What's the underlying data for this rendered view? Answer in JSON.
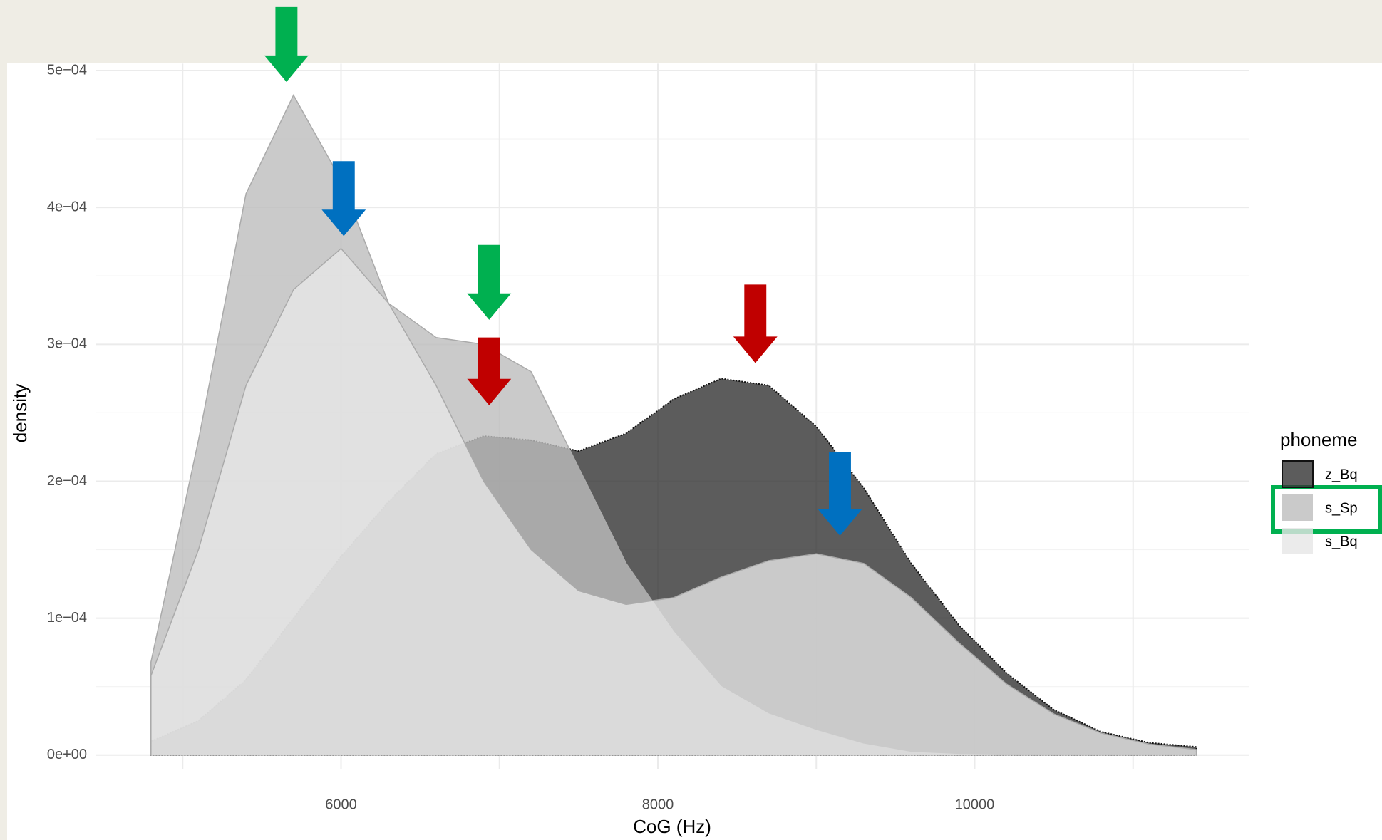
{
  "chart_data": {
    "type": "density",
    "xlabel": "CoG (Hz)",
    "ylabel": "density",
    "legend_title": "phoneme",
    "legend": "right",
    "grid": true,
    "xlim": [
      4450,
      11730
    ],
    "xticks": [
      6000,
      8000,
      10000
    ],
    "xminor": [
      5000,
      7000,
      9000,
      11000
    ],
    "ylim": [
      -1e-05,
      0.000505
    ],
    "yticks": [
      {
        "value": 0,
        "label": "0e+00"
      },
      {
        "value": 0.0001,
        "label": "1e−04"
      },
      {
        "value": 0.0002,
        "label": "2e−04"
      },
      {
        "value": 0.0003,
        "label": "3e−04"
      },
      {
        "value": 0.0004,
        "label": "4e−04"
      },
      {
        "value": 0.0005,
        "label": "5e−04"
      }
    ],
    "yminor": [
      5e-05,
      0.00015,
      0.00025,
      0.00035,
      0.00045
    ],
    "x": [
      4800,
      5100,
      5400,
      5700,
      6000,
      6300,
      6600,
      6900,
      7200,
      7500,
      7800,
      8100,
      8400,
      8700,
      9000,
      9300,
      9600,
      9900,
      10200,
      10500,
      10800,
      11100,
      11400
    ],
    "series": [
      {
        "name": "z_Bq",
        "color": "#333333",
        "values": [
          1e-05,
          2.5e-05,
          5.5e-05,
          0.0001,
          0.000145,
          0.000185,
          0.00022,
          0.000233,
          0.00023,
          0.000222,
          0.000235,
          0.00026,
          0.000275,
          0.00027,
          0.00024,
          0.000195,
          0.00014,
          9.5e-05,
          6e-05,
          3.3e-05,
          1.7e-05,
          9e-06,
          6e-06
        ]
      },
      {
        "name": "s_Sp",
        "color": "#bdbdbd",
        "values": [
          6.8e-05,
          0.00023,
          0.00041,
          0.000482,
          0.00042,
          0.00033,
          0.000305,
          0.0003,
          0.00028,
          0.00021,
          0.00014,
          9e-05,
          5e-05,
          3e-05,
          1.8e-05,
          8e-06,
          2e-06,
          5e-07,
          0,
          0,
          0,
          0,
          0
        ]
      },
      {
        "name": "s_Bq",
        "color": "#e6e6e6",
        "values": [
          5.8e-05,
          0.00015,
          0.00027,
          0.00034,
          0.00037,
          0.00033,
          0.00027,
          0.0002,
          0.00015,
          0.00012,
          0.00011,
          0.000115,
          0.00013,
          0.000142,
          0.000147,
          0.00014,
          0.000115,
          8.2e-05,
          5.2e-05,
          3e-05,
          1.6e-05,
          8e-06,
          4e-06
        ]
      }
    ]
  }
}
